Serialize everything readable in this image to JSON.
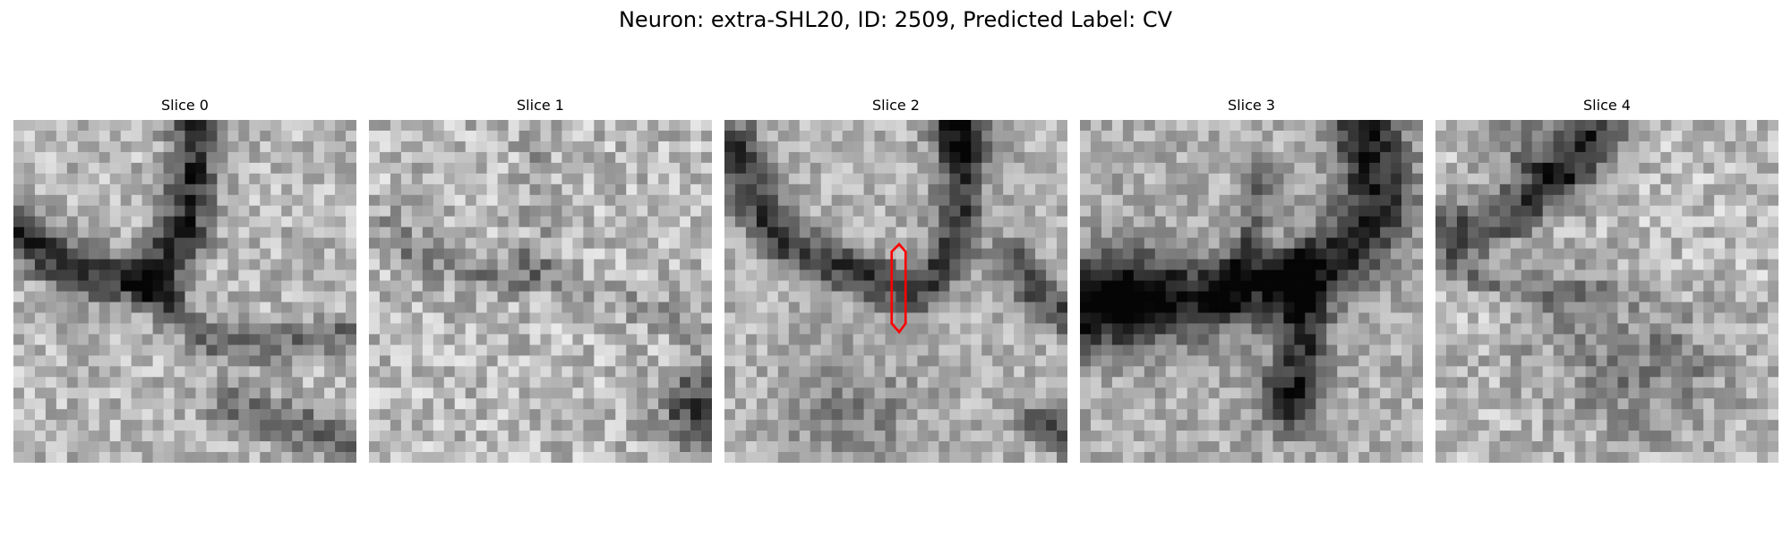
{
  "figure": {
    "title": "Neuron: extra-SHL20, ID: 2509, Predicted Label: CV"
  },
  "panels": [
    {
      "title": "Slice 0",
      "icon": "grayscale-microscopy-slice"
    },
    {
      "title": "Slice 1",
      "icon": "grayscale-microscopy-slice"
    },
    {
      "title": "Slice 2",
      "icon": "grayscale-microscopy-slice",
      "marker": "red-outline"
    },
    {
      "title": "Slice 3",
      "icon": "grayscale-microscopy-slice"
    },
    {
      "title": "Slice 4",
      "icon": "grayscale-microscopy-slice"
    }
  ],
  "colors": {
    "marker": "#ff0000"
  }
}
